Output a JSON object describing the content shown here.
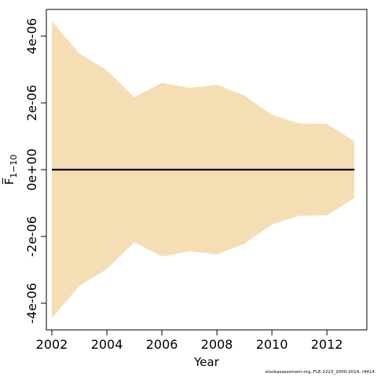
{
  "chart_data": {
    "type": "area",
    "title": "",
    "xlabel": "Year",
    "ylabel": "F̅",
    "ylabel_subscript": "1−10",
    "x": [
      2002,
      2003,
      2004,
      2005,
      2006,
      2007,
      2008,
      2009,
      2010,
      2011,
      2012,
      2013
    ],
    "series": [
      {
        "role": "band",
        "color": "#F5DEB3",
        "upper": [
          4.45e-06,
          3.48e-06,
          2.98e-06,
          2.17e-06,
          2.6e-06,
          2.45e-06,
          2.54e-06,
          2.22e-06,
          1.64e-06,
          1.38e-06,
          1.37e-06,
          8.5e-07
        ],
        "lower": [
          -4.45e-06,
          -3.48e-06,
          -2.98e-06,
          -2.17e-06,
          -2.6e-06,
          -2.45e-06,
          -2.54e-06,
          -2.22e-06,
          -1.64e-06,
          -1.38e-06,
          -1.37e-06,
          -8.5e-07
        ]
      },
      {
        "role": "line",
        "color": "#000000",
        "values": [
          0,
          0,
          0,
          0,
          0,
          0,
          0,
          0,
          0,
          0,
          0,
          0
        ]
      }
    ],
    "xlim": [
      2001.8,
      2013.45
    ],
    "ylim": [
      -4.8e-06,
      4.8e-06
    ],
    "x_ticks": [
      2002,
      2004,
      2006,
      2008,
      2010,
      2012
    ],
    "x_tick_labels": [
      "2002",
      "2004",
      "2006",
      "2008",
      "2010",
      "2012"
    ],
    "y_ticks": [
      -4e-06,
      -2e-06,
      0,
      2e-06,
      4e-06
    ],
    "y_tick_labels": [
      "-4e-06",
      "-2e-06",
      "0e+00",
      "2e-06",
      "4e-06"
    ],
    "grid": false,
    "legend": "none"
  },
  "footnote": "stockassessment.org, FLE-2223_2000-2014, r4414"
}
